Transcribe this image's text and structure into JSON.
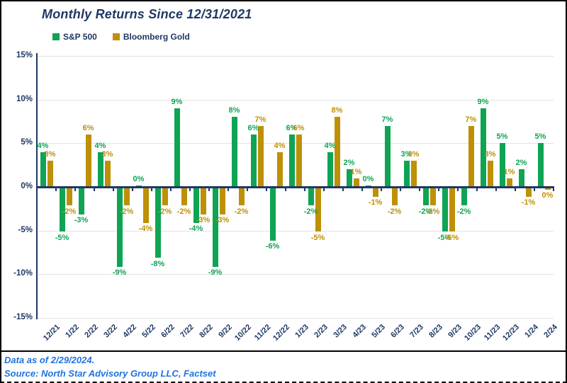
{
  "footer": {
    "data_as_of": "Data as of 2/29/2024.",
    "source": "Source: North Star Advisory Group LLC, Factset"
  },
  "colors": {
    "sp500_green": "#0EA454",
    "gold": "#BE9005",
    "navy": "#1F3864",
    "gridline": "#E3E3E3",
    "footer_blue": "#1E73E0",
    "border_black": "#000000"
  },
  "chart_data": {
    "type": "bar",
    "title": "Monthly Returns Since 12/31/2021",
    "categories": [
      "12/21",
      "1/22",
      "2/22",
      "3/22",
      "4/22",
      "5/22",
      "6/22",
      "7/22",
      "8/22",
      "9/22",
      "10/22",
      "11/22",
      "12/22",
      "1/23",
      "2/23",
      "3/23",
      "4/23",
      "5/23",
      "6/23",
      "7/23",
      "8/23",
      "9/23",
      "10/23",
      "11/23",
      "12/23",
      "1/24",
      "2/24"
    ],
    "series": [
      {
        "name": "S&P 500",
        "color": "#0EA454",
        "values": [
          4,
          -5,
          -3,
          4,
          -9,
          0.2,
          -8,
          9,
          -4,
          -9,
          8,
          6,
          -6,
          6,
          -2,
          4,
          2,
          0.2,
          7,
          3,
          -2,
          -5,
          -2,
          9,
          5,
          2,
          5
        ]
      },
      {
        "name": "Bloomberg Gold",
        "color": "#BE9005",
        "values": [
          3,
          -2,
          6,
          3,
          -2,
          -4,
          -2,
          -2,
          -3,
          -3,
          -2,
          7,
          4,
          6,
          -5,
          8,
          1,
          -1,
          -2,
          3,
          -2,
          -5,
          7,
          3,
          1,
          -1,
          -0.2
        ]
      }
    ],
    "xlabel": "",
    "ylabel": "",
    "unit": "%",
    "ylim": [
      -15,
      15
    ],
    "y_ticks": [
      15,
      10,
      5,
      0,
      -5,
      -10,
      -15
    ],
    "grid": true,
    "legend_position": "top-left",
    "data_labels": "rounded percent on every bar"
  }
}
